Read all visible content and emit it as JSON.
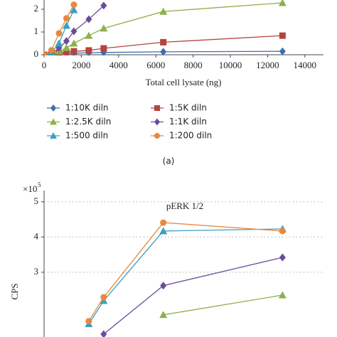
{
  "chart_data": [
    {
      "type": "line",
      "xlabel": "Total cell lysate (ng)",
      "panel_label": "(a)",
      "x": [
        0,
        400,
        800,
        1200,
        1600,
        2400,
        3200,
        6400,
        12800
      ],
      "xlim": [
        0,
        15000
      ],
      "xticks": [
        0,
        2000,
        4000,
        6000,
        8000,
        10000,
        12000,
        14000
      ],
      "ylim": [
        0,
        2.4
      ],
      "yticks": [
        0,
        1,
        2
      ],
      "grid": false,
      "series": [
        {
          "name": "1:10K diln",
          "color": "#3a6fb0",
          "marker": "diamond",
          "values": [
            0,
            0.01,
            0.03,
            0.05,
            0.07,
            0.09,
            0.1,
            0.13,
            0.15
          ]
        },
        {
          "name": "1:5K diln",
          "color": "#b5433e",
          "marker": "square",
          "values": [
            0,
            0.02,
            0.08,
            0.12,
            0.15,
            0.19,
            0.28,
            0.55,
            0.84
          ]
        },
        {
          "name": "1:2.5K diln",
          "color": "#8db04a",
          "marker": "triangle",
          "values": [
            0,
            0.03,
            0.15,
            0.3,
            0.5,
            0.84,
            1.16,
            1.9,
            2.28
          ]
        },
        {
          "name": "1:1K diln",
          "color": "#6b4c9a",
          "marker": "diamond",
          "values": [
            0,
            0.05,
            0.3,
            0.6,
            1.03,
            1.56,
            2.16,
            null,
            null
          ]
        },
        {
          "name": "1:500 diln",
          "color": "#3aa0c0",
          "marker": "triangle",
          "values": [
            0,
            0.1,
            0.5,
            1.28,
            1.97,
            null,
            null,
            null,
            null
          ]
        },
        {
          "name": "1:200 diln",
          "color": "#e8883a",
          "marker": "circle",
          "values": [
            0,
            0.2,
            0.94,
            1.6,
            2.2,
            null,
            null,
            null,
            null
          ]
        }
      ]
    },
    {
      "type": "line",
      "title": "pERK 1/2",
      "ylabel": "CPS",
      "y_multiplier": {
        "base": "×10",
        "exponent": "5"
      },
      "x": [
        2400,
        3200,
        6400,
        12800
      ],
      "xlim": [
        0,
        15000
      ],
      "ylim": [
        1.16,
        5.32
      ],
      "yticks": [
        3,
        4,
        5
      ],
      "grid": true,
      "series": [
        {
          "color": "#8db04a",
          "marker": "triangle",
          "values": [
            null,
            null,
            1.79,
            2.35
          ]
        },
        {
          "color": "#6b4c9a",
          "marker": "diamond",
          "values": [
            null,
            1.24,
            2.62,
            3.42
          ]
        },
        {
          "color": "#3aa0c0",
          "marker": "triangle",
          "values": [
            1.53,
            2.19,
            4.17,
            4.23
          ]
        },
        {
          "color": "#e8883a",
          "marker": "circle",
          "values": [
            1.61,
            2.29,
            4.41,
            4.17
          ]
        }
      ]
    }
  ]
}
